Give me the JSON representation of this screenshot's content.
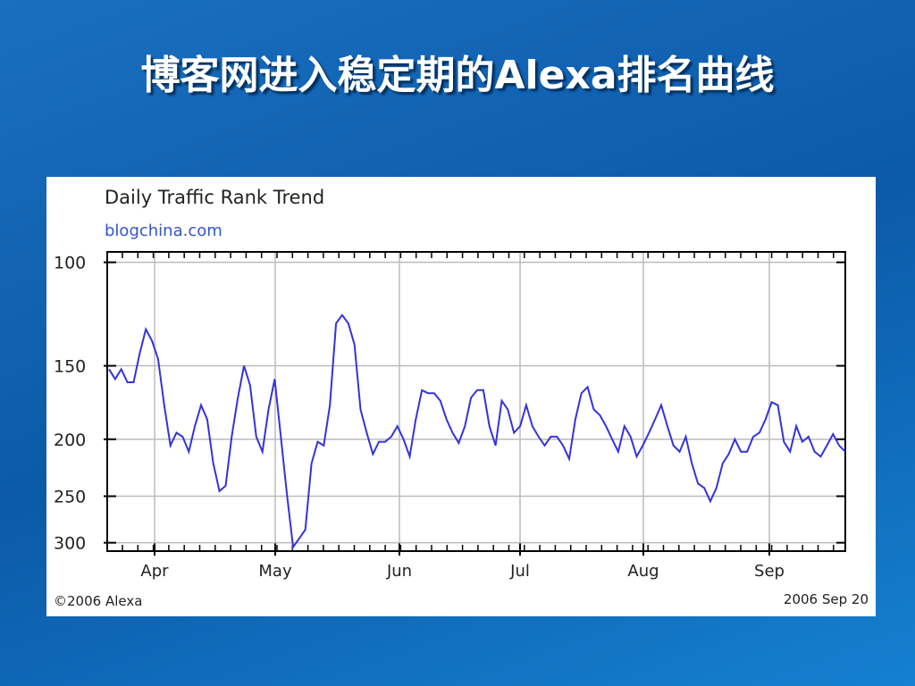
{
  "slide_title": "博客网进入稳定期的Alexa排名曲线",
  "chart_data": {
    "type": "line",
    "title": "Daily Traffic Rank Trend",
    "subtitle": "blogchina.com",
    "footer_left": "©2006 Alexa",
    "footer_right": "2006 Sep 20",
    "x_labels": [
      "Apr",
      "May",
      "Jun",
      "Jul",
      "Aug",
      "Sep"
    ],
    "color": "#3333dd",
    "yscale": "log",
    "grid": true,
    "ylim": [
      310,
      96
    ],
    "yticks": [
      100,
      150,
      200,
      250,
      300
    ],
    "values": [
      152,
      158,
      152,
      160,
      160,
      143,
      130,
      136,
      146,
      175,
      205,
      195,
      198,
      210,
      190,
      175,
      185,
      220,
      245,
      240,
      198,
      170,
      150,
      162,
      198,
      210,
      178,
      158,
      198,
      248,
      305,
      295,
      285,
      220,
      202,
      205,
      175,
      127,
      123,
      127,
      138,
      178,
      195,
      212,
      202,
      202,
      198,
      190,
      200,
      214,
      185,
      165,
      167,
      167,
      172,
      185,
      195,
      203,
      190,
      170,
      165,
      165,
      190,
      205,
      172,
      178,
      195,
      190,
      175,
      190,
      198,
      205,
      198,
      198,
      205,
      216,
      185,
      167,
      163,
      178,
      182,
      190,
      200,
      210,
      190,
      198,
      214,
      205,
      195,
      185,
      175,
      190,
      205,
      210,
      198,
      220,
      238,
      242,
      255,
      242,
      220,
      212,
      200,
      210,
      210,
      198,
      195,
      185,
      173,
      175,
      202,
      210,
      190,
      202,
      198,
      210,
      214,
      205,
      196,
      205,
      210
    ]
  }
}
